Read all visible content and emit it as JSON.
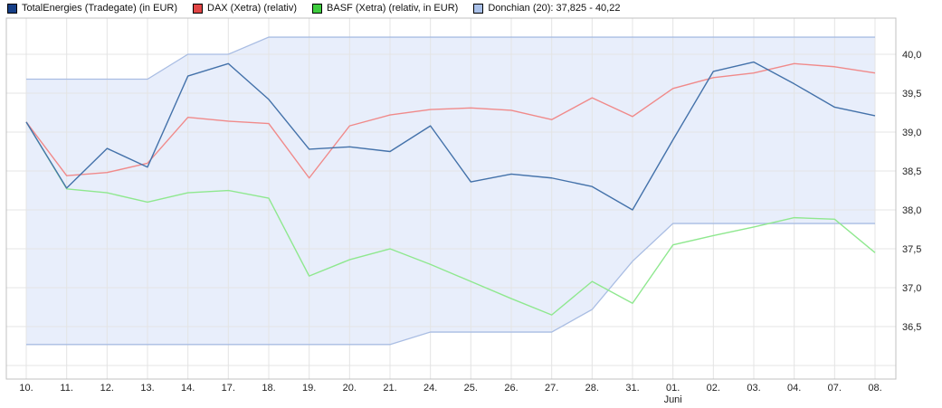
{
  "legend": {
    "items": [
      {
        "label": "TotalEnergies (Tradegate) (in EUR)",
        "swatch_color": "#163f87"
      },
      {
        "label": "DAX (Xetra) (relativ)",
        "swatch_color": "#e04545"
      },
      {
        "label": "BASF (Xetra) (relativ, in EUR)",
        "swatch_color": "#3ecc3e"
      },
      {
        "label": "Donchian (20): 37,825 - 40,22",
        "swatch_color": "#a9c0e8"
      }
    ]
  },
  "chart_data": {
    "type": "line",
    "title": "",
    "xlabel": "",
    "ylabel": "",
    "x_tick_labels": [
      "10.",
      "11.",
      "12.",
      "13.",
      "14.",
      "17.",
      "18.",
      "19.",
      "20.",
      "21.",
      "24.",
      "25.",
      "26.",
      "27.",
      "28.",
      "31.",
      "01.",
      "02.",
      "03.",
      "04.",
      "07.",
      "08."
    ],
    "month_label": {
      "text": "Juni",
      "tick_index": 16
    },
    "y_axis": {
      "side": "right",
      "gridline_values": [
        36.0,
        36.5,
        37.0,
        37.5,
        38.0,
        38.5,
        39.0,
        39.5,
        40.0
      ],
      "tick_labels": [
        {
          "value": 36.5,
          "label": "36,5"
        },
        {
          "value": 37.0,
          "label": "37,0"
        },
        {
          "value": 37.5,
          "label": "37,5"
        },
        {
          "value": 38.0,
          "label": "38,0"
        },
        {
          "value": 38.5,
          "label": "38,5"
        },
        {
          "value": 39.0,
          "label": "39,0"
        },
        {
          "value": 39.5,
          "label": "39,5"
        },
        {
          "value": 40.0,
          "label": "40,0"
        }
      ]
    },
    "ylim": [
      35.826,
      40.465
    ],
    "grid": true,
    "legend_position": "top",
    "series": [
      {
        "name": "BASF (Xetra) (relativ, in EUR)",
        "color": "#8fe88f",
        "values": [
          39.13,
          38.27,
          38.22,
          38.1,
          38.22,
          38.25,
          38.15,
          37.15,
          37.36,
          37.5,
          37.3,
          37.08,
          36.86,
          36.65,
          37.08,
          36.8,
          37.55,
          37.67,
          37.78,
          37.9,
          37.88,
          37.45
        ]
      },
      {
        "name": "DAX (Xetra) (relativ)",
        "color": "#f08a8a",
        "values": [
          39.13,
          38.44,
          38.48,
          38.6,
          39.19,
          39.14,
          39.11,
          38.41,
          39.08,
          39.22,
          39.29,
          39.31,
          39.28,
          39.16,
          39.44,
          39.2,
          39.56,
          39.7,
          39.76,
          39.88,
          39.84,
          39.76
        ]
      },
      {
        "name": "TotalEnergies (Tradegate) (in EUR)",
        "color": "#4472aa",
        "values": [
          39.13,
          38.28,
          38.79,
          38.55,
          39.72,
          39.88,
          39.42,
          38.78,
          38.81,
          38.75,
          39.08,
          38.36,
          38.46,
          38.41,
          38.3,
          38.0,
          38.9,
          39.78,
          39.9,
          39.62,
          39.32,
          39.21
        ]
      }
    ],
    "band": {
      "name": "Donchian (20)",
      "current_range": "37,825 - 40,22",
      "fill": "#e8eefb",
      "edge_color": "#a9bde3",
      "upper": [
        39.68,
        39.68,
        39.68,
        39.68,
        40.0,
        40.0,
        40.22,
        40.22,
        40.22,
        40.22,
        40.22,
        40.22,
        40.22,
        40.22,
        40.22,
        40.22,
        40.22,
        40.22,
        40.22,
        40.22,
        40.22,
        40.22
      ],
      "lower": [
        36.27,
        36.27,
        36.27,
        36.27,
        36.27,
        36.27,
        36.27,
        36.27,
        36.27,
        36.27,
        36.43,
        36.43,
        36.43,
        36.43,
        36.72,
        37.34,
        37.825,
        37.825,
        37.825,
        37.825,
        37.825,
        37.825
      ]
    }
  }
}
